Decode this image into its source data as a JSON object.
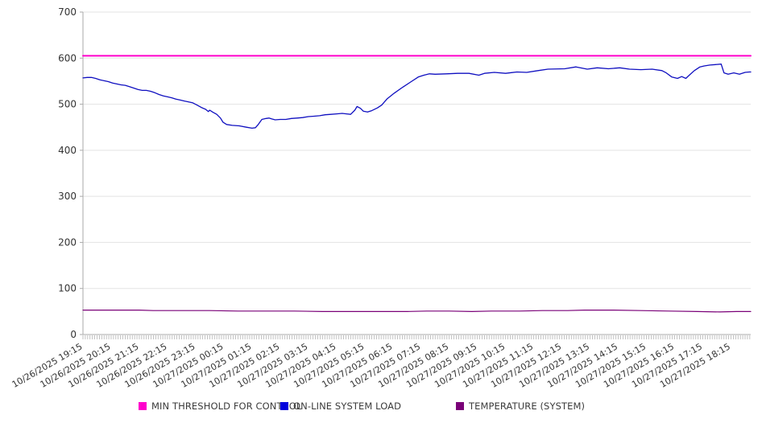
{
  "chart_data": {
    "type": "line",
    "title": "",
    "xlabel": "",
    "ylabel": "",
    "ylim": [
      0,
      700
    ],
    "y_ticks": [
      0,
      100,
      200,
      300,
      400,
      500,
      600,
      700
    ],
    "grid": "horizontal-only",
    "legend_position": "bottom",
    "x_tick_labels": [
      "10/26/2025 19:15",
      "10/26/2025 20:15",
      "10/26/2025 21:15",
      "10/26/2025 22:15",
      "10/26/2025 23:15",
      "10/27/2025 00:15",
      "10/27/2025 01:15",
      "10/27/2025 02:15",
      "10/27/2025 03:15",
      "10/27/2025 04:15",
      "10/27/2025 05:15",
      "10/27/2025 06:15",
      "10/27/2025 07:15",
      "10/27/2025 08:15",
      "10/27/2025 09:15",
      "10/27/2025 10:15",
      "10/27/2025 11:15",
      "10/27/2025 12:15",
      "10/27/2025 13:15",
      "10/27/2025 14:15",
      "10/27/2025 15:15",
      "10/27/2025 16:15",
      "10/27/2025 17:15",
      "10/27/2025 18:15"
    ],
    "x_hours_range": [
      0,
      23.7
    ],
    "minor_tick_minutes": 5,
    "series": [
      {
        "name": "MIN THRESHOLD FOR CONTROL",
        "color": "#ff00cc",
        "width": 2,
        "points": [
          [
            0,
            605
          ],
          [
            23.7,
            605
          ]
        ]
      },
      {
        "name": "ON-LINE SYSTEM LOAD",
        "color": "#0f0fc0",
        "width": 1.3,
        "points": [
          [
            0,
            557
          ],
          [
            0.15,
            558
          ],
          [
            0.3,
            558
          ],
          [
            0.45,
            556
          ],
          [
            0.6,
            553
          ],
          [
            0.75,
            551
          ],
          [
            0.9,
            549
          ],
          [
            1.05,
            546
          ],
          [
            1.2,
            544
          ],
          [
            1.35,
            542
          ],
          [
            1.5,
            541
          ],
          [
            1.65,
            538
          ],
          [
            1.8,
            535
          ],
          [
            1.95,
            532
          ],
          [
            2.1,
            530
          ],
          [
            2.25,
            530
          ],
          [
            2.4,
            528
          ],
          [
            2.55,
            525
          ],
          [
            2.7,
            521
          ],
          [
            2.85,
            518
          ],
          [
            3,
            516
          ],
          [
            3.15,
            514
          ],
          [
            3.3,
            511
          ],
          [
            3.45,
            509
          ],
          [
            3.6,
            507
          ],
          [
            3.75,
            505
          ],
          [
            3.9,
            503
          ],
          [
            4.05,
            498
          ],
          [
            4.2,
            493
          ],
          [
            4.35,
            489
          ],
          [
            4.45,
            484
          ],
          [
            4.5,
            487
          ],
          [
            4.6,
            483
          ],
          [
            4.75,
            478
          ],
          [
            4.88,
            470
          ],
          [
            4.97,
            461
          ],
          [
            5.1,
            456
          ],
          [
            5.3,
            454
          ],
          [
            5.55,
            453
          ],
          [
            5.8,
            450
          ],
          [
            6,
            448
          ],
          [
            6.12,
            449
          ],
          [
            6.22,
            456
          ],
          [
            6.35,
            467
          ],
          [
            6.5,
            469
          ],
          [
            6.6,
            470
          ],
          [
            6.7,
            468
          ],
          [
            6.82,
            466
          ],
          [
            7,
            467
          ],
          [
            7.2,
            467
          ],
          [
            7.4,
            469
          ],
          [
            7.6,
            470
          ],
          [
            7.8,
            471
          ],
          [
            8,
            473
          ],
          [
            8.2,
            474
          ],
          [
            8.4,
            475
          ],
          [
            8.6,
            477
          ],
          [
            8.8,
            478
          ],
          [
            9,
            479
          ],
          [
            9.2,
            480
          ],
          [
            9.35,
            479
          ],
          [
            9.5,
            478
          ],
          [
            9.65,
            487
          ],
          [
            9.73,
            495
          ],
          [
            9.85,
            491
          ],
          [
            9.95,
            485
          ],
          [
            10.1,
            483
          ],
          [
            10.25,
            486
          ],
          [
            10.45,
            492
          ],
          [
            10.6,
            498
          ],
          [
            10.8,
            512
          ],
          [
            11.05,
            524
          ],
          [
            11.35,
            537
          ],
          [
            11.65,
            549
          ],
          [
            11.9,
            559
          ],
          [
            12.1,
            563
          ],
          [
            12.3,
            566
          ],
          [
            12.5,
            565
          ],
          [
            12.9,
            566
          ],
          [
            13.3,
            567
          ],
          [
            13.7,
            567
          ],
          [
            14.05,
            563
          ],
          [
            14.25,
            567
          ],
          [
            14.6,
            569
          ],
          [
            15,
            567
          ],
          [
            15.4,
            570
          ],
          [
            15.75,
            569
          ],
          [
            16.15,
            573
          ],
          [
            16.5,
            576
          ],
          [
            17.1,
            577
          ],
          [
            17.5,
            581
          ],
          [
            17.9,
            576
          ],
          [
            18.25,
            579
          ],
          [
            18.65,
            577
          ],
          [
            19.05,
            579
          ],
          [
            19.4,
            576
          ],
          [
            19.8,
            575
          ],
          [
            20.2,
            576
          ],
          [
            20.55,
            573
          ],
          [
            20.7,
            568
          ],
          [
            20.9,
            559
          ],
          [
            21.1,
            556
          ],
          [
            21.25,
            560
          ],
          [
            21.4,
            556
          ],
          [
            21.5,
            562
          ],
          [
            21.7,
            573
          ],
          [
            21.9,
            581
          ],
          [
            22.05,
            583
          ],
          [
            22.25,
            585
          ],
          [
            22.45,
            586
          ],
          [
            22.65,
            587
          ],
          [
            22.75,
            568
          ],
          [
            22.9,
            565
          ],
          [
            23.1,
            568
          ],
          [
            23.3,
            565
          ],
          [
            23.5,
            569
          ],
          [
            23.65,
            570
          ],
          [
            23.7,
            570
          ]
        ]
      },
      {
        "name": "TEMPERATURE (SYSTEM)",
        "color": "#7a0078",
        "width": 1.2,
        "points": [
          [
            0,
            53
          ],
          [
            1,
            53
          ],
          [
            2,
            53
          ],
          [
            2.5,
            52
          ],
          [
            3.5,
            52
          ],
          [
            4.5,
            52
          ],
          [
            5.5,
            51
          ],
          [
            6.5,
            51
          ],
          [
            7.5,
            51
          ],
          [
            8.5,
            50
          ],
          [
            9.5,
            50
          ],
          [
            10.5,
            50
          ],
          [
            11.5,
            50
          ],
          [
            12.2,
            51
          ],
          [
            13,
            51
          ],
          [
            13.8,
            50
          ],
          [
            14.5,
            51
          ],
          [
            15.5,
            51
          ],
          [
            16.3,
            52
          ],
          [
            17.2,
            52
          ],
          [
            17.8,
            53
          ],
          [
            18.8,
            53
          ],
          [
            19.8,
            52
          ],
          [
            20.8,
            51
          ],
          [
            21.8,
            50
          ],
          [
            22.6,
            49
          ],
          [
            23.2,
            50
          ],
          [
            23.7,
            50
          ]
        ]
      }
    ]
  },
  "legend": {
    "items": [
      {
        "label": "MIN THRESHOLD FOR CONTROL",
        "color": "#ff00cc"
      },
      {
        "label": "ON-LINE SYSTEM LOAD",
        "color": "#0000dd"
      },
      {
        "label": "TEMPERATURE (SYSTEM)",
        "color": "#7a0078"
      }
    ]
  },
  "axis": {
    "label_color": "#333333",
    "gridline_color": "#e3e3e3",
    "axis_color": "#aaaaaa",
    "minor_tick_color": "#b3b3b3"
  }
}
